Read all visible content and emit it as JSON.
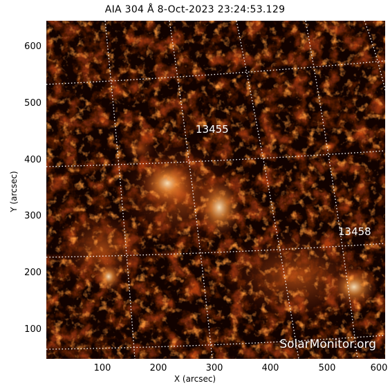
{
  "title": "AIA 304 Å  8-Oct-2023 23:24:53.129",
  "axes": {
    "xlabel": "X (arcsec)",
    "ylabel": "Y (arcsec)",
    "xticks": [
      "100",
      "200",
      "300",
      "400",
      "500",
      "600"
    ],
    "yticks": [
      "600",
      "500",
      "400",
      "300",
      "200",
      "100"
    ]
  },
  "regions": [
    {
      "label": "13455"
    },
    {
      "label": "13458"
    }
  ],
  "watermark": "SolarMonitor.org",
  "colors": {
    "background": "#000000",
    "hot": "#ffd9a0",
    "mid": "#c84812",
    "dim": "#5a1204",
    "grid": "#ffffff"
  }
}
